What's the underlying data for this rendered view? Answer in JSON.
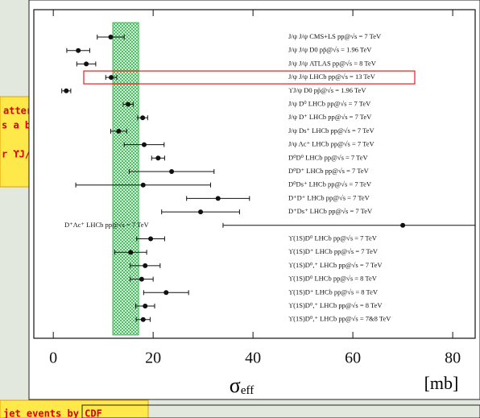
{
  "chart_data": {
    "type": "forest",
    "categories": [
      "J/ψ J/ψ  CMS+LS  pp@√s = 7 TeV",
      "J/ψ J/ψ  D0  pp̄@√s = 1.96 TeV",
      "J/ψ J/ψ  ATLAS  pp@√s = 8 TeV",
      "J/ψ J/ψ  LHCb  pp@√s = 13 TeV",
      "ϒJ/ψ  D0  pp̄@√s = 1.96 TeV",
      "J/ψ D⁰  LHCb  pp@√s = 7 TeV",
      "J/ψ D⁺  LHCb  pp@√s = 7 TeV",
      "J/ψ Ds⁺  LHCb  pp@√s = 7 TeV",
      "J/ψ Λc⁺  LHCb  pp@√s = 7 TeV",
      "D⁰D⁰  LHCb  pp@√s = 7 TeV",
      "D⁰D⁺  LHCb  pp@√s = 7 TeV",
      "D⁰Ds⁺  LHCb  pp@√s = 7 TeV",
      "D⁺D⁺  LHCb  pp@√s = 7 TeV",
      "D⁺Ds⁺  LHCb  pp@√s = 7 TeV",
      "D⁺Λc⁺  LHCb  pp@√s = 7 TeV",
      "ϒ(1S)D⁰  LHCb  pp@√s = 7 TeV",
      "ϒ(1S)D⁺  LHCb  pp@√s = 7 TeV",
      "ϒ(1S)D⁰,⁺  LHCb  pp@√s = 7 TeV",
      "ϒ(1S)D⁰  LHCb  pp@√s = 8 TeV",
      "ϒ(1S)D⁺  LHCb  pp@√s = 8 TeV",
      "ϒ(1S)D⁰,⁺  LHCb  pp@√s = 8 TeV",
      "ϒ(1S)D⁰,⁺  LHCb  pp@√s = 7&8 TeV"
    ],
    "values": [
      11.5,
      5.0,
      6.6,
      11.6,
      2.6,
      15.0,
      17.9,
      13.1,
      18.2,
      21.0,
      23.7,
      18.0,
      33.0,
      29.5,
      70.0,
      19.5,
      15.5,
      18.4,
      17.7,
      22.6,
      18.4,
      18.0
    ],
    "errors": [
      2.7,
      2.3,
      1.9,
      1.1,
      0.9,
      1.0,
      1.0,
      1.6,
      4.0,
      1.3,
      8.5,
      13.5,
      6.3,
      7.8,
      36.0,
      2.8,
      3.2,
      3.0,
      2.3,
      4.5,
      1.9,
      1.4
    ],
    "highlight": 3,
    "band": [
      11.9,
      17.1
    ],
    "band_color": "#2fb34a",
    "xlim": [
      -3.9,
      84.5
    ],
    "xticks": [
      0,
      20,
      40,
      60,
      80
    ],
    "x_label": {
      "symbol": "σ",
      "subscript": "eff"
    },
    "x_unit": "[mb]"
  },
  "notes": {
    "left": [
      "attern",
      "s a bit lower",
      "r ϒJ/ψ"
    ],
    "bottom": "jet events by CDF"
  }
}
